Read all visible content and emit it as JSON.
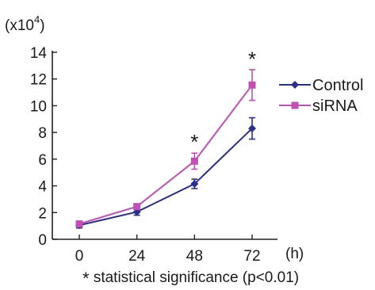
{
  "chart_data": {
    "type": "line",
    "title": "",
    "xlabel": "(h)",
    "ylabel": "(x10",
    "ylabel_exponent": "4",
    "ylabel_close": ")",
    "x": [
      0,
      24,
      48,
      72
    ],
    "x_tick_labels": [
      "0",
      "24",
      "48",
      "72"
    ],
    "ylim": [
      0,
      14
    ],
    "y_ticks": [
      0,
      2,
      4,
      6,
      8,
      10,
      12,
      14
    ],
    "y_tick_labels": [
      "0",
      "2",
      "4",
      "6",
      "8",
      "10",
      "12",
      "14"
    ],
    "grid": false,
    "legend_placement": "right",
    "series": [
      {
        "name": "Control",
        "color": "#2b2e8c",
        "marker": "diamond",
        "values": [
          1.05,
          2.05,
          4.15,
          8.3
        ],
        "errors": [
          0.2,
          0.25,
          0.35,
          0.8
        ]
      },
      {
        "name": "siRNA",
        "color": "#c050b4",
        "marker": "square",
        "values": [
          1.15,
          2.45,
          5.85,
          11.55
        ],
        "errors": [
          0.2,
          0.2,
          0.6,
          1.15
        ]
      }
    ],
    "annotations": [
      {
        "text": "*",
        "x": 48,
        "y": 7.3
      },
      {
        "text": "*",
        "x": 72,
        "y": 13.5
      }
    ],
    "footnote_star": "*",
    "footnote_text": " statistical significance (p<0.01)"
  }
}
